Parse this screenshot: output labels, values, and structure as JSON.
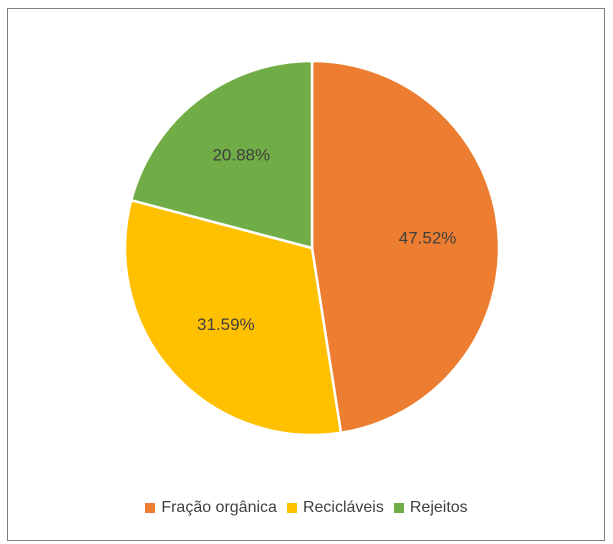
{
  "chart_data": {
    "type": "pie",
    "title": "",
    "categories": [
      "Fração orgânica",
      "Recicláveis",
      "Rejeitos"
    ],
    "values": [
      47.52,
      31.59,
      20.88
    ],
    "labels": [
      "47.52%",
      "31.59%",
      "20.88%"
    ],
    "colors": [
      "#ED7D31",
      "#FFC000",
      "#70AD47"
    ],
    "legend_position": "bottom",
    "start_angle_deg": 0,
    "direction": "clockwise"
  }
}
